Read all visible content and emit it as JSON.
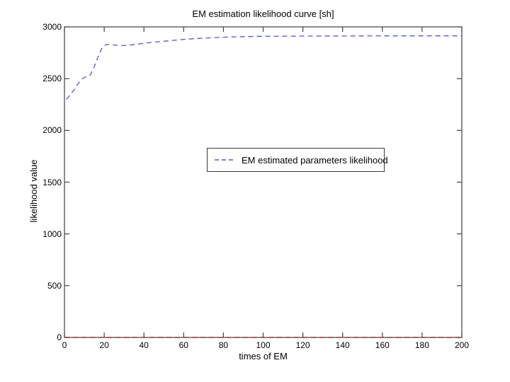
{
  "figure": {
    "title": "EM estimation likelihood curve [sh]",
    "xlabel": "times of EM",
    "ylabel": "likelihood value"
  },
  "legend": {
    "entries": [
      {
        "label": "EM estimated parameters likelihood",
        "color": "#5555cc",
        "line_style": "dashed"
      }
    ]
  },
  "colors": {
    "background": "#ffffff",
    "axis_box": "#404040",
    "series_blue": "#5555cc",
    "series_red": "#8b1c1c",
    "text": "#000000"
  },
  "chart_data": {
    "type": "line",
    "title": "EM estimation likelihood curve [sh]",
    "xlabel": "times of EM",
    "ylabel": "likelihood value",
    "xlim": [
      0,
      200
    ],
    "ylim": [
      0,
      3000
    ],
    "x_ticks": [
      0,
      20,
      40,
      60,
      80,
      100,
      120,
      140,
      160,
      180,
      200
    ],
    "y_ticks": [
      0,
      500,
      1000,
      1500,
      2000,
      2500,
      3000
    ],
    "grid": false,
    "legend_position": "center",
    "series": [
      {
        "name": "EM estimated parameters likelihood",
        "color": "#5555cc",
        "line_style": "dashed",
        "in_legend": true,
        "x": [
          1,
          3,
          5,
          7,
          9,
          11,
          13,
          15,
          17,
          19,
          21,
          24,
          28,
          32,
          36,
          40,
          45,
          50,
          55,
          60,
          65,
          70,
          80,
          90,
          100,
          110,
          120,
          140,
          160,
          180,
          200
        ],
        "y": [
          2300,
          2345,
          2395,
          2455,
          2500,
          2520,
          2535,
          2615,
          2715,
          2800,
          2830,
          2827,
          2818,
          2822,
          2831,
          2842,
          2852,
          2861,
          2870,
          2879,
          2886,
          2891,
          2900,
          2906,
          2909,
          2910,
          2911,
          2912,
          2913,
          2913,
          2913
        ]
      },
      {
        "name": "",
        "color": "#8b1c1c",
        "line_style": "dashed",
        "in_legend": false,
        "x": [
          0,
          200
        ],
        "y": [
          0,
          0
        ]
      }
    ]
  }
}
